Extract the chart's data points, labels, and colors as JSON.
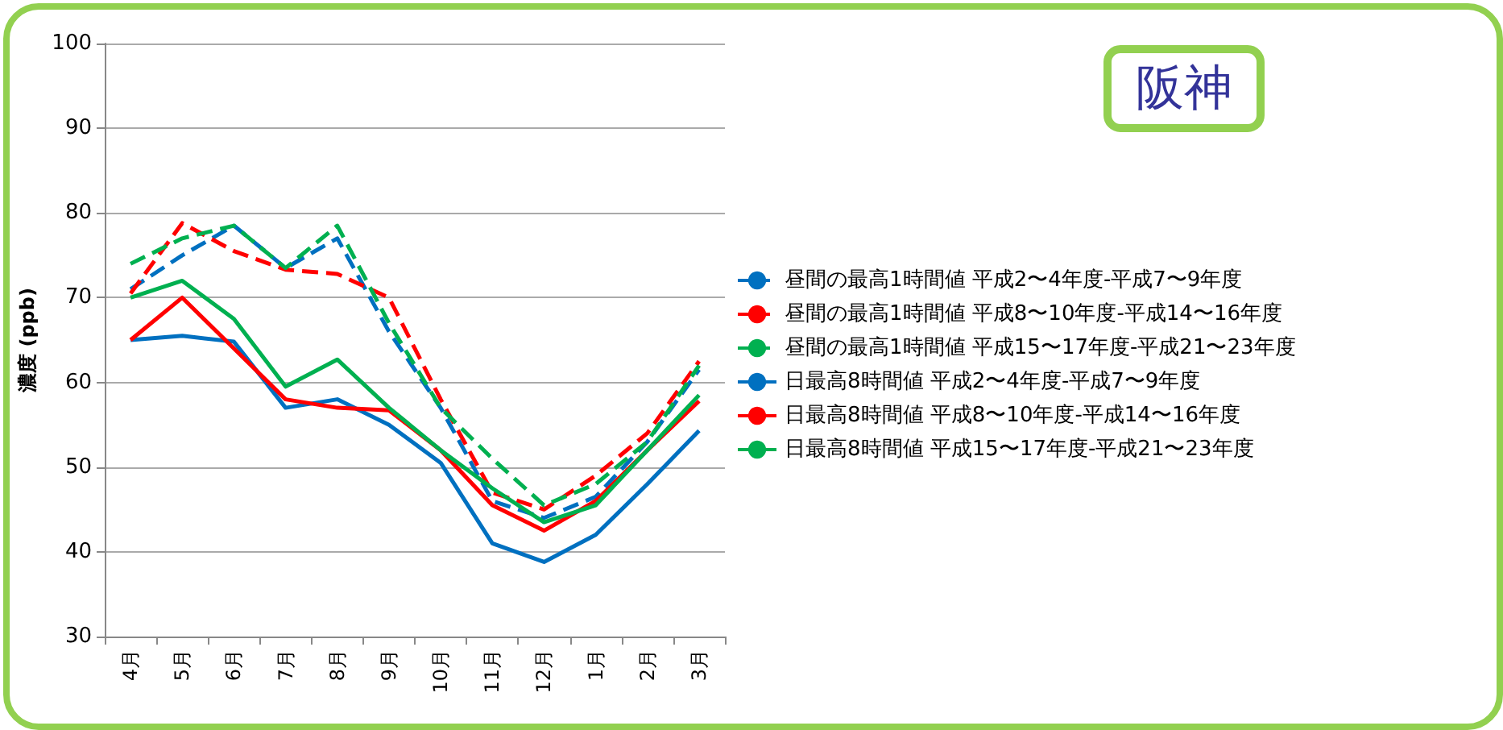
{
  "chart_data": {
    "type": "line",
    "title": "阪神",
    "ylabel": "濃度 (ppb)",
    "categories": [
      "4月",
      "5月",
      "6月",
      "7月",
      "8月",
      "9月",
      "10月",
      "11月",
      "12月",
      "1月",
      "2月",
      "3月"
    ],
    "ylim": [
      30,
      100
    ],
    "yticks": [
      30,
      40,
      50,
      60,
      70,
      80,
      90,
      100
    ],
    "grid": "y",
    "legend": "right",
    "marker": "none",
    "series": [
      {
        "name": "昼間の最高1時間値 平成2〜4年度-平成7〜9年度",
        "color": "#0070c0",
        "line_style": "dashed",
        "values": [
          71,
          75,
          78.5,
          73.5,
          77,
          66,
          57,
          46,
          44,
          46.5,
          53,
          61.5
        ]
      },
      {
        "name": "昼間の最高1時間値 平成8〜10年度-平成14〜16年度",
        "color": "#ff0000",
        "line_style": "dashed",
        "values": [
          70.5,
          78.8,
          75.5,
          73.3,
          72.8,
          70,
          58,
          47,
          45,
          49,
          54,
          62.5
        ]
      },
      {
        "name": "昼間の最高1時間値 平成15〜17年度-平成21〜23年度",
        "color": "#00b050",
        "line_style": "dashed",
        "values": [
          74,
          77,
          78.5,
          73.5,
          78.5,
          67,
          57,
          51,
          45.5,
          48,
          53,
          62
        ]
      },
      {
        "name": "日最高8時間値 平成2〜4年度-平成7〜9年度",
        "color": "#0070c0",
        "line_style": "solid",
        "values": [
          65,
          65.5,
          64.8,
          57,
          58,
          55,
          50.5,
          41,
          38.8,
          42,
          48,
          54.3
        ]
      },
      {
        "name": "日最高8時間値 平成8〜10年度-平成14〜16年度",
        "color": "#ff0000",
        "line_style": "solid",
        "values": [
          65,
          70,
          64,
          58,
          57,
          56.7,
          52,
          45.5,
          42.5,
          46,
          52,
          57.8
        ]
      },
      {
        "name": "日最高8時間値 平成15〜17年度-平成21〜23年度",
        "color": "#00b050",
        "line_style": "solid",
        "values": [
          70,
          72,
          67.5,
          59.5,
          62.7,
          57,
          52,
          47.5,
          43.5,
          45.5,
          52,
          58.5
        ]
      }
    ]
  }
}
